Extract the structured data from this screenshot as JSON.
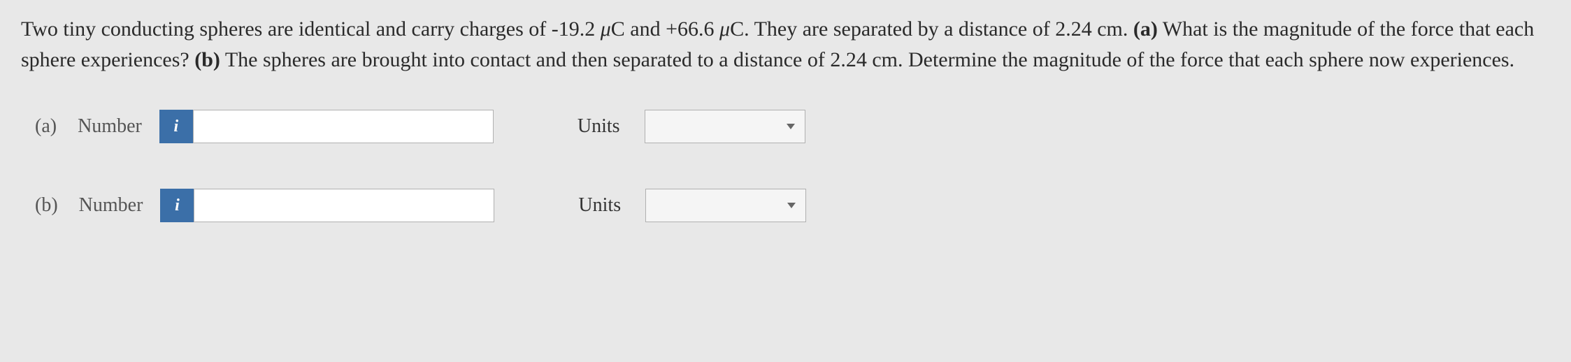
{
  "question": {
    "text_parts": {
      "p1": "Two tiny conducting spheres are identical and carry charges of -19.2 ",
      "mu1": "μ",
      "p2": "C and +66.6 ",
      "mu2": "μ",
      "p3": "C. They are separated by a distance of 2.24 cm. ",
      "bold_a": "(a)",
      "p4": " What is the magnitude of the force that each sphere experiences? ",
      "bold_b": "(b)",
      "p5": " The spheres are brought into contact and then separated to a distance of 2.24 cm. Determine the magnitude of the force that each sphere now experiences."
    }
  },
  "answers": {
    "a": {
      "part_label": "(a)",
      "number_label": "Number",
      "info_icon": "i",
      "number_value": "",
      "units_label": "Units",
      "units_value": ""
    },
    "b": {
      "part_label": "(b)",
      "number_label": "Number",
      "info_icon": "i",
      "number_value": "",
      "units_label": "Units",
      "units_value": ""
    }
  },
  "colors": {
    "background": "#e8e8e8",
    "text": "#333333",
    "info_button": "#3b6fa8",
    "input_border": "#b0b0b0"
  }
}
